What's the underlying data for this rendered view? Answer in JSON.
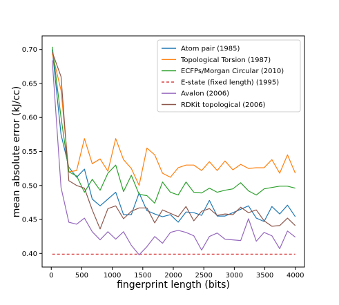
{
  "chart_data": {
    "type": "line",
    "xlabel": "fingerprint length (bits)",
    "ylabel": "mean absolute error (kJ/cc)",
    "xlim": [
      -150,
      4150
    ],
    "ylim": [
      0.38,
      0.72
    ],
    "xticks": [
      0,
      500,
      1000,
      1500,
      2000,
      2500,
      3000,
      3500,
      4000
    ],
    "yticks": [
      0.4,
      0.45,
      0.5,
      0.55,
      0.6,
      0.65,
      0.7
    ],
    "xtick_labels": [
      "0",
      "500",
      "1000",
      "1500",
      "2000",
      "2500",
      "3000",
      "3500",
      "4000"
    ],
    "ytick_labels": [
      "0.40",
      "0.45",
      "0.50",
      "0.55",
      "0.60",
      "0.65",
      "0.70"
    ],
    "grid": false,
    "legend_position": "top-right",
    "x": [
      16,
      160,
      288,
      416,
      544,
      672,
      800,
      928,
      1056,
      1184,
      1312,
      1440,
      1568,
      1696,
      1824,
      1952,
      2080,
      2208,
      2336,
      2464,
      2592,
      2720,
      2848,
      2976,
      3104,
      3232,
      3360,
      3488,
      3616,
      3744,
      3872,
      4000
    ],
    "series": [
      {
        "name": "Atom pair (1985)",
        "color": "#1f77b4",
        "style": "solid",
        "values": [
          0.7,
          0.575,
          0.527,
          0.512,
          0.524,
          0.48,
          0.47,
          0.48,
          0.49,
          0.457,
          0.457,
          0.489,
          0.463,
          0.458,
          0.454,
          0.457,
          0.446,
          0.461,
          0.46,
          0.456,
          0.478,
          0.455,
          0.455,
          0.46,
          0.465,
          0.47,
          0.452,
          0.447,
          0.469,
          0.458,
          0.471,
          0.454
        ]
      },
      {
        "name": "Topological Torsion (1987)",
        "color": "#ff7f0e",
        "style": "solid",
        "values": [
          0.694,
          0.64,
          0.52,
          0.522,
          0.569,
          0.532,
          0.539,
          0.521,
          0.569,
          0.538,
          0.525,
          0.5,
          0.555,
          0.545,
          0.518,
          0.512,
          0.526,
          0.53,
          0.53,
          0.522,
          0.535,
          0.522,
          0.536,
          0.523,
          0.531,
          0.525,
          0.526,
          0.526,
          0.538,
          0.518,
          0.545,
          0.518
        ]
      },
      {
        "name": "ECFPs/Morgan Circular (2010)",
        "color": "#2ca02c",
        "style": "solid",
        "values": [
          0.704,
          0.6,
          0.52,
          0.514,
          0.49,
          0.509,
          0.493,
          0.518,
          0.53,
          0.491,
          0.515,
          0.487,
          0.485,
          0.474,
          0.505,
          0.49,
          0.486,
          0.505,
          0.49,
          0.489,
          0.496,
          0.49,
          0.493,
          0.495,
          0.504,
          0.492,
          0.486,
          0.495,
          0.497,
          0.499,
          0.499,
          0.496
        ]
      },
      {
        "name": "E-state (fixed length) (1995)",
        "color": "#d62728",
        "style": "dashed",
        "values": [
          0.399,
          0.399,
          0.399,
          0.399,
          0.399,
          0.399,
          0.399,
          0.399,
          0.399,
          0.399,
          0.399,
          0.399,
          0.399,
          0.399,
          0.399,
          0.399,
          0.399,
          0.399,
          0.399,
          0.399,
          0.399,
          0.399,
          0.399,
          0.399,
          0.399,
          0.399,
          0.399,
          0.399,
          0.399,
          0.399,
          0.399,
          0.399
        ]
      },
      {
        "name": "Avalon (2006)",
        "color": "#9467bd",
        "style": "solid",
        "values": [
          0.684,
          0.497,
          0.446,
          0.443,
          0.452,
          0.432,
          0.42,
          0.432,
          0.421,
          0.432,
          0.412,
          0.398,
          0.41,
          0.425,
          0.415,
          0.431,
          0.434,
          0.431,
          0.426,
          0.405,
          0.425,
          0.43,
          0.421,
          0.42,
          0.419,
          0.451,
          0.418,
          0.431,
          0.426,
          0.407,
          0.433,
          0.424
        ]
      },
      {
        "name": "RDKit topological (2006)",
        "color": "#8c564b",
        "style": "solid",
        "values": [
          0.696,
          0.66,
          0.507,
          0.5,
          0.496,
          0.464,
          0.436,
          0.466,
          0.47,
          0.451,
          0.462,
          0.467,
          0.467,
          0.445,
          0.464,
          0.459,
          0.454,
          0.469,
          0.448,
          0.462,
          0.466,
          0.456,
          0.458,
          0.457,
          0.468,
          0.46,
          0.464,
          0.448,
          0.44,
          0.441,
          0.452,
          0.441
        ]
      }
    ]
  }
}
